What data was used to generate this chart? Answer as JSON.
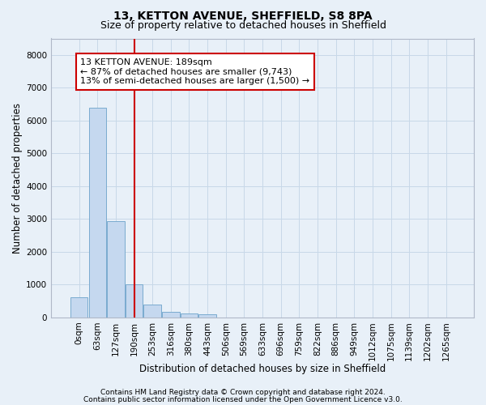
{
  "title1": "13, KETTON AVENUE, SHEFFIELD, S8 8PA",
  "title2": "Size of property relative to detached houses in Sheffield",
  "xlabel": "Distribution of detached houses by size in Sheffield",
  "ylabel": "Number of detached properties",
  "categories": [
    "0sqm",
    "63sqm",
    "127sqm",
    "190sqm",
    "253sqm",
    "316sqm",
    "380sqm",
    "443sqm",
    "506sqm",
    "569sqm",
    "633sqm",
    "696sqm",
    "759sqm",
    "822sqm",
    "886sqm",
    "949sqm",
    "1012sqm",
    "1075sqm",
    "1139sqm",
    "1202sqm",
    "1265sqm"
  ],
  "values": [
    620,
    6400,
    2920,
    1000,
    380,
    160,
    105,
    80,
    0,
    0,
    0,
    0,
    0,
    0,
    0,
    0,
    0,
    0,
    0,
    0,
    0
  ],
  "bar_color": "#c5d8ef",
  "bar_edge_color": "#7aabcf",
  "vline_x": 3,
  "vline_color": "#cc0000",
  "annotation_line1": "13 KETTON AVENUE: 189sqm",
  "annotation_line2": "← 87% of detached houses are smaller (9,743)",
  "annotation_line3": "13% of semi-detached houses are larger (1,500) →",
  "annotation_box_color": "#ffffff",
  "annotation_box_edge_color": "#cc0000",
  "ylim": [
    0,
    8500
  ],
  "yticks": [
    0,
    1000,
    2000,
    3000,
    4000,
    5000,
    6000,
    7000,
    8000
  ],
  "grid_color": "#c8d8e8",
  "background_color": "#e8f0f8",
  "footer_line1": "Contains HM Land Registry data © Crown copyright and database right 2024.",
  "footer_line2": "Contains public sector information licensed under the Open Government Licence v3.0.",
  "title1_fontsize": 10,
  "title2_fontsize": 9,
  "xlabel_fontsize": 8.5,
  "ylabel_fontsize": 8.5,
  "tick_fontsize": 7.5,
  "annotation_fontsize": 8,
  "footer_fontsize": 6.5
}
